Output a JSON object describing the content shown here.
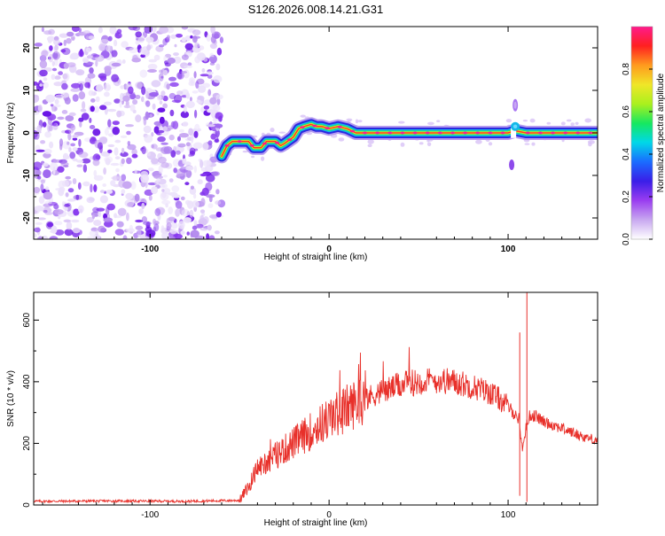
{
  "title": "S126.2026.008.14.21.G31",
  "chart_data": [
    {
      "type": "heatmap",
      "name": "spectrogram",
      "xlabel": "Height of straight line (km)",
      "ylabel": "Frequency (Hz)",
      "xlim": [
        -165,
        150
      ],
      "ylim": [
        -25,
        25
      ],
      "xticks": [
        -100,
        0,
        100
      ],
      "yticks": [
        -20,
        -10,
        0,
        10,
        20
      ],
      "noise_region_x": [
        -165,
        -60
      ],
      "trace": {
        "x": [
          -60,
          -57,
          -54,
          -50,
          -45,
          -42,
          -38,
          -35,
          -30,
          -27,
          -25,
          -20,
          -17,
          -14,
          -10,
          -7,
          -4,
          0,
          5,
          10,
          15,
          50,
          100,
          104,
          110,
          150
        ],
        "y": [
          -5.5,
          -3.0,
          -2.0,
          -2.0,
          -2.0,
          -3.5,
          -3.5,
          -2.0,
          -2.0,
          -3.0,
          -2.5,
          -1.0,
          1.0,
          1.5,
          2.0,
          1.5,
          1.5,
          1.0,
          1.5,
          1.0,
          0.0,
          0.0,
          0.0,
          0.5,
          0.0,
          0.0
        ]
      },
      "colorbar": {
        "label": "Normalized spectral amplitude",
        "range": [
          0,
          1
        ],
        "ticks": [
          0.0,
          0.2,
          0.4,
          0.6,
          0.8
        ],
        "tick_labels": [
          "0.0",
          "0.2",
          "0.4",
          "0.6",
          "0.8"
        ],
        "colors": [
          "#ffffff",
          "#c8a8f0",
          "#9a3df0",
          "#3a1ee8",
          "#1a6cff",
          "#00d8e8",
          "#16e860",
          "#aaf01e",
          "#f0e628",
          "#ff9a1e",
          "#ff2020",
          "#ff1a8c"
        ]
      }
    },
    {
      "type": "line",
      "name": "snr",
      "xlabel": "Height of straight line (km)",
      "ylabel": "SNR (10 * v/v)",
      "xlim": [
        -165,
        150
      ],
      "ylim": [
        0,
        690
      ],
      "xticks": [
        -100,
        0,
        100
      ],
      "yticks": [
        0,
        200,
        400,
        600
      ],
      "color": "#e8302a",
      "series": [
        {
          "name": "SNR",
          "x": [
            -165,
            -120,
            -80,
            -50,
            -45,
            -40,
            -30,
            -20,
            -10,
            0,
            10,
            20,
            30,
            40,
            50,
            60,
            70,
            80,
            90,
            95,
            100,
            103,
            106,
            108,
            110,
            112,
            115,
            120,
            130,
            140,
            150
          ],
          "y": [
            12,
            13,
            12,
            15,
            60,
            120,
            160,
            200,
            240,
            280,
            315,
            345,
            370,
            390,
            400,
            405,
            400,
            385,
            365,
            345,
            320,
            300,
            280,
            180,
            250,
            290,
            290,
            270,
            250,
            225,
            210
          ]
        }
      ],
      "spikes": [
        {
          "x": 106.5,
          "low": 30,
          "high": 560
        },
        {
          "x": 110.5,
          "low": 10,
          "high": 690
        }
      ]
    }
  ]
}
